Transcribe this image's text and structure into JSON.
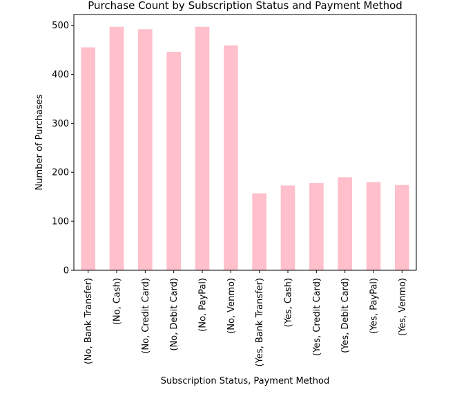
{
  "chart_data": {
    "type": "bar",
    "title": "Purchase Count by Subscription Status and Payment Method",
    "xlabel": "Subscription Status, Payment Method",
    "ylabel": "Number of Purchases",
    "categories": [
      "(No, Bank Transfer)",
      "(No, Cash)",
      "(No, Credit Card)",
      "(No, Debit Card)",
      "(No, PayPal)",
      "(No, Venmo)",
      "(Yes, Bank Transfer)",
      "(Yes, Cash)",
      "(Yes, Credit Card)",
      "(Yes, Debit Card)",
      "(Yes, PayPal)",
      "(Yes, Venmo)"
    ],
    "values": [
      455,
      497,
      492,
      446,
      497,
      459,
      157,
      173,
      178,
      190,
      180,
      174
    ],
    "ylim": [
      0,
      522
    ],
    "yticks": [
      0,
      100,
      200,
      300,
      400,
      500
    ],
    "bar_color": "#ffc0cb",
    "grid": false,
    "legend": "none"
  }
}
